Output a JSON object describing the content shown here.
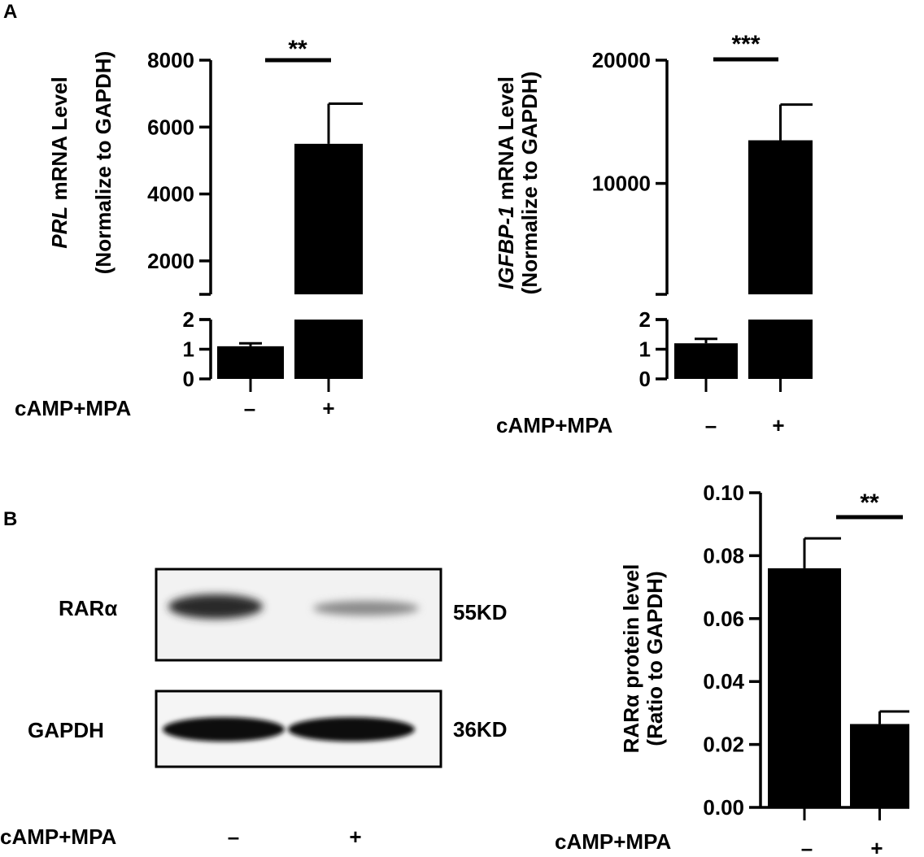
{
  "panels": {
    "a_label": "A",
    "b_label": "B"
  },
  "treatment_label": "cAMP+MPA",
  "chart_data": [
    {
      "type": "bar",
      "title": "",
      "ylabel": "PRL mRNA Level",
      "ylabel_italic_part": "PRL",
      "ylabel_rest": " mRNA Level",
      "ylabel_line2": "(Normalize to GAPDH)",
      "xlabel": "cAMP+MPA",
      "categories": [
        "–",
        "+"
      ],
      "values": [
        1.1,
        5500
      ],
      "errors": [
        0.1,
        1200
      ],
      "y_axis_broken": true,
      "lower_ylim": [
        0,
        2
      ],
      "lower_ticks": [
        "0",
        "1",
        "2"
      ],
      "upper_ylim": [
        1000,
        8000
      ],
      "upper_ticks": [
        "2000",
        "4000",
        "6000",
        "8000"
      ],
      "significance": "**",
      "color": "#000000"
    },
    {
      "type": "bar",
      "title": "",
      "ylabel": "IGFBP-1 mRNA Level",
      "ylabel_italic_part": "IGFBP-1",
      "ylabel_rest": " mRNA Level",
      "ylabel_line2": "(Normalize to GAPDH)",
      "xlabel": "cAMP+MPA",
      "categories": [
        "–",
        "+"
      ],
      "values": [
        1.2,
        13500
      ],
      "errors": [
        0.15,
        2900
      ],
      "y_axis_broken": true,
      "lower_ylim": [
        0,
        2
      ],
      "lower_ticks": [
        "0",
        "1",
        "2"
      ],
      "upper_ylim": [
        1000,
        20000
      ],
      "upper_ticks": [
        "10000",
        "20000"
      ],
      "significance": "***",
      "color": "#000000"
    },
    {
      "type": "bar",
      "title": "",
      "ylabel": "RARα protein level",
      "ylabel_line2": "(Ratio to GAPDH)",
      "xlabel": "cAMP+MPA",
      "categories": [
        "–",
        "+"
      ],
      "values": [
        0.076,
        0.0265
      ],
      "errors": [
        0.0095,
        0.004
      ],
      "ylim": [
        0,
        0.1
      ],
      "ticks": [
        "0.00",
        "0.02",
        "0.04",
        "0.06",
        "0.08",
        "0.10"
      ],
      "significance": "**",
      "color": "#000000"
    }
  ],
  "western_blot": {
    "bands": [
      {
        "name": "RARα",
        "size": "55KD",
        "lane_intensity": [
          0.85,
          0.25
        ]
      },
      {
        "name": "GAPDH",
        "size": "36KD",
        "lane_intensity": [
          1.0,
          1.0
        ]
      }
    ],
    "lanes": [
      "–",
      "+"
    ]
  }
}
